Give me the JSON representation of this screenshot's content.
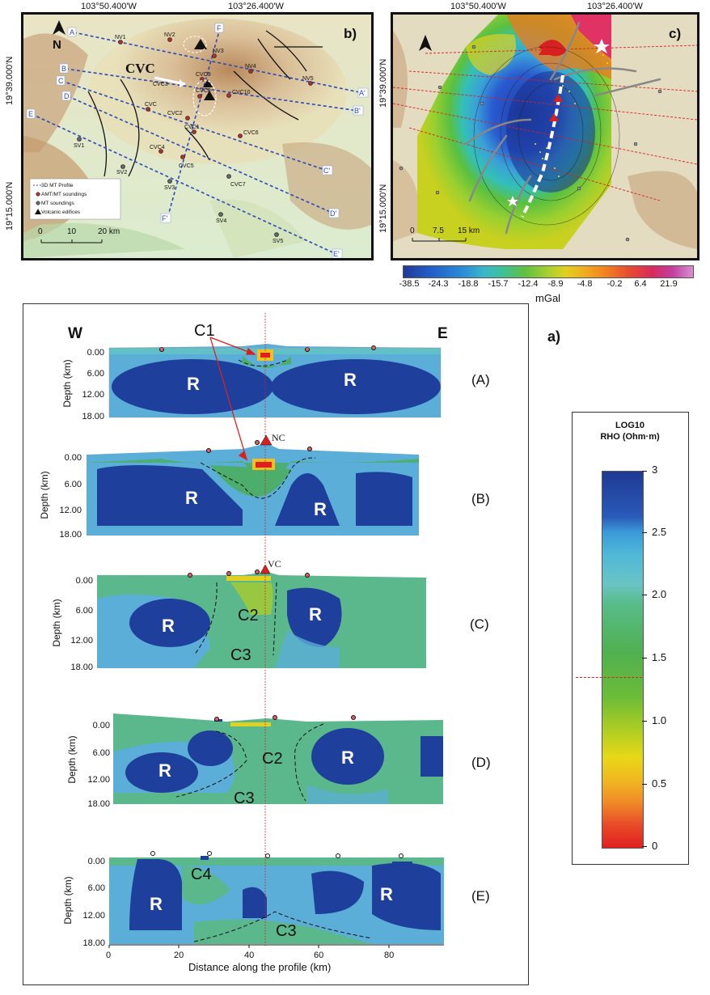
{
  "map_b": {
    "panel_label": "b)",
    "lon_labels": [
      "103°50.400'W",
      "103°26.400'W"
    ],
    "lat_labels": [
      "19°39.000'N",
      "19°15.000'N"
    ],
    "north_label": "N",
    "cvc_label": "CVC",
    "scale_labels": [
      "0",
      "10",
      "20 km"
    ],
    "profile_letters": [
      "A",
      "A'",
      "B",
      "B'",
      "C",
      "C'",
      "D",
      "D'",
      "E",
      "E'",
      "F",
      "F'"
    ],
    "station_labels": [
      "NV1",
      "NV2",
      "NV3",
      "NV4",
      "NV5",
      "CVC9",
      "CVC8",
      "CVC10",
      "CVC3",
      "CVC2",
      "CVC1",
      "CVC6",
      "CVC4",
      "CVC5",
      "CVC7",
      "SV1",
      "SV2",
      "SV3",
      "SV4",
      "SV5"
    ],
    "legend": [
      "3D MT Profile",
      "AMT/MT soundings",
      "MT soundings",
      "Volcanic edifices"
    ]
  },
  "map_c": {
    "panel_label": "c)",
    "lon_labels": [
      "103°50.400'W",
      "103°26.400'W"
    ],
    "lat_labels": [
      "19°39.000'N",
      "19°15.000'N"
    ],
    "scale_labels": [
      "0",
      "7.5",
      "15 km"
    ],
    "gravity_ticks": [
      "-38.5",
      "-24.3",
      "-18.8",
      "-15.7",
      "-12.4",
      "-8.9",
      "-4.8",
      "-0.2",
      "6.4",
      "21.9"
    ],
    "gravity_unit": "mGal"
  },
  "sections": {
    "panel_label": "a)",
    "west": "W",
    "east": "E",
    "ylabel": "Depth (km)",
    "xlabel": "Distance along the profile (km)",
    "depth_ticks": [
      "0.00",
      "6.00",
      "12.00",
      "18.00"
    ],
    "x_ticks": [
      "0",
      "20",
      "40",
      "60",
      "80"
    ],
    "profiles": [
      {
        "label": "(A)",
        "bodies": [
          "R",
          "R"
        ]
      },
      {
        "label": "(B)",
        "bodies": [
          "R",
          "R"
        ],
        "volcano": "NC"
      },
      {
        "label": "(C)",
        "bodies": [
          "R",
          "R",
          "C2",
          "C3"
        ],
        "volcano": "VC"
      },
      {
        "label": "(D)",
        "bodies": [
          "R",
          "R",
          "C2",
          "C3"
        ]
      },
      {
        "label": "(E)",
        "bodies": [
          "R",
          "R",
          "C4",
          "C3"
        ]
      }
    ],
    "c1_label": "C1"
  },
  "colorbar": {
    "title_line1": "LOG10",
    "title_line2": "RHO (Ohm·m)",
    "ticks": [
      "3",
      "2.5",
      "2.0",
      "1.5",
      "1.0",
      "0.5",
      "0"
    ]
  }
}
